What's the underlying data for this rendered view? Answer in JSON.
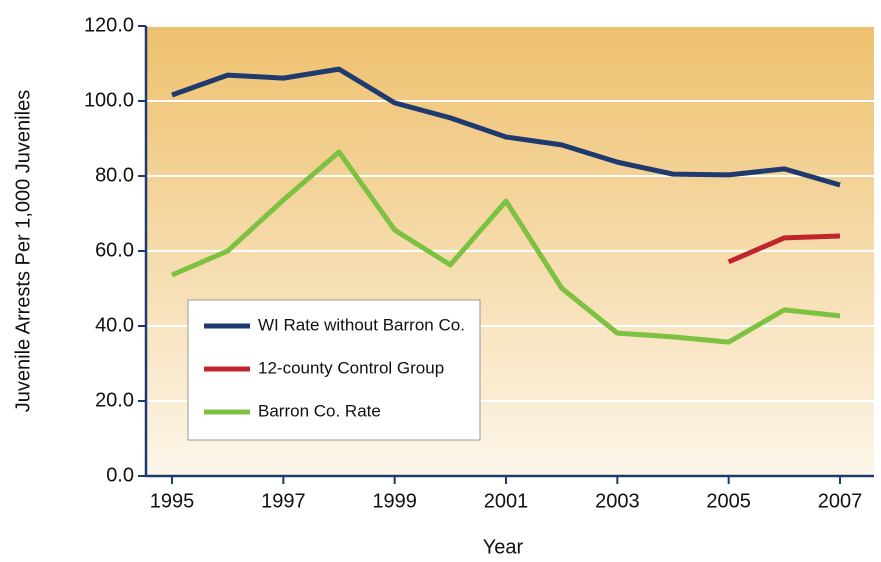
{
  "chart_data": {
    "type": "line",
    "x_label": "Year",
    "y_label": "Juvenile Arrests Per 1,000 Juveniles",
    "x": [
      1995,
      1996,
      1997,
      1998,
      1999,
      2000,
      2001,
      2002,
      2003,
      2004,
      2005,
      2006,
      2007
    ],
    "series": [
      {
        "name": "WI Rate without Barron Co.",
        "color": "#1f3a6e",
        "values": [
          101.6,
          106.9,
          106.1,
          108.5,
          99.5,
          95.5,
          90.4,
          88.3,
          83.7,
          80.5,
          80.3,
          81.9,
          77.6
        ]
      },
      {
        "name": "12-county Control Group",
        "color": "#c0242c",
        "values": [
          null,
          null,
          null,
          null,
          null,
          null,
          null,
          null,
          null,
          null,
          57.1,
          63.5,
          64.0
        ]
      },
      {
        "name": "Barron Co. Rate",
        "color": "#7cc142",
        "values": [
          53.6,
          60.0,
          73.6,
          86.4,
          65.6,
          56.3,
          73.3,
          50.1,
          38.1,
          37.1,
          35.7,
          44.3,
          42.7
        ]
      }
    ],
    "xlim": [
      1995,
      2007
    ],
    "xticks": [
      1995,
      1997,
      1999,
      2001,
      2003,
      2005,
      2007
    ],
    "ylim": [
      0,
      120
    ],
    "yticks": [
      {
        "value": 0,
        "label": "0.0"
      },
      {
        "value": 20,
        "label": "20.0"
      },
      {
        "value": 40,
        "label": "40.0"
      },
      {
        "value": 60,
        "label": "60.0"
      },
      {
        "value": 80,
        "label": "80.0"
      },
      {
        "value": 100,
        "label": "100.0"
      },
      {
        "value": 120,
        "label": "120.0"
      }
    ],
    "grid": true,
    "legend": "lower left"
  }
}
